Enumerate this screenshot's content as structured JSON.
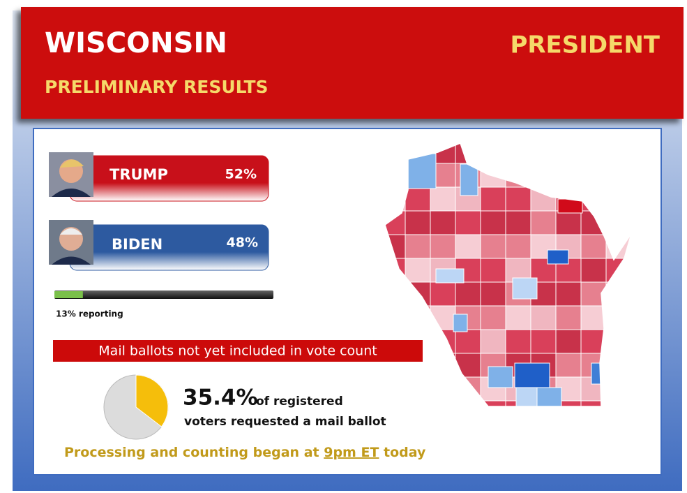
{
  "header": {
    "state": "WISCONSIN",
    "subtitle": "PRELIMINARY RESULTS",
    "race": "PRESIDENT"
  },
  "candidates": [
    {
      "name": "TRUMP",
      "share": "52%"
    },
    {
      "name": "BIDEN",
      "share": "48%"
    }
  ],
  "reporting": {
    "value": 13,
    "label": "13% reporting"
  },
  "notice": "Mail ballots not yet included in vote count",
  "mail": {
    "value": 35.4,
    "label": "35.4%",
    "text1": "of registered",
    "text2": "voters requested a mail ballot"
  },
  "processing": {
    "before": "Processing and counting began at",
    "time": "9pm ET",
    "after": "today"
  }
}
